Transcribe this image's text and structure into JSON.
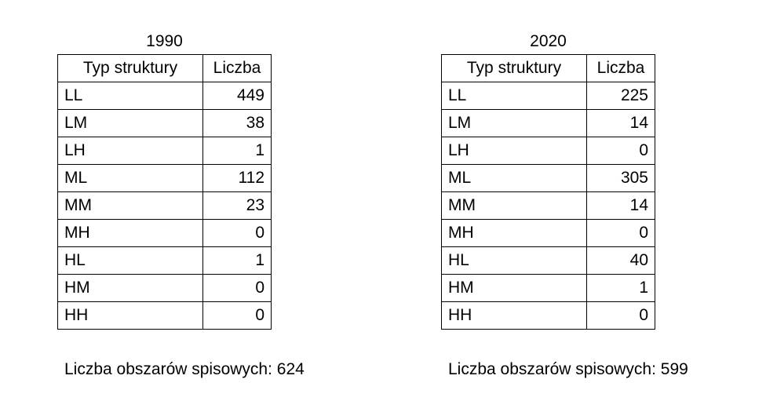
{
  "left": {
    "year": "1990",
    "headers": [
      "Typ struktury",
      "Liczba"
    ],
    "rows": [
      {
        "type": "LL",
        "count": "449"
      },
      {
        "type": "LM",
        "count": "38"
      },
      {
        "type": "LH",
        "count": "1"
      },
      {
        "type": "ML",
        "count": "112"
      },
      {
        "type": "MM",
        "count": "23"
      },
      {
        "type": "MH",
        "count": "0"
      },
      {
        "type": "HL",
        "count": "1"
      },
      {
        "type": "HM",
        "count": "0"
      },
      {
        "type": "HH",
        "count": "0"
      }
    ],
    "footer": "Liczba obszarów spisowych: 624"
  },
  "right": {
    "year": "2020",
    "headers": [
      "Typ struktury",
      "Liczba"
    ],
    "rows": [
      {
        "type": "LL",
        "count": "225"
      },
      {
        "type": "LM",
        "count": "14"
      },
      {
        "type": "LH",
        "count": "0"
      },
      {
        "type": "ML",
        "count": "305"
      },
      {
        "type": "MM",
        "count": "14"
      },
      {
        "type": "MH",
        "count": "0"
      },
      {
        "type": "HL",
        "count": "40"
      },
      {
        "type": "HM",
        "count": "1"
      },
      {
        "type": "HH",
        "count": "0"
      }
    ],
    "footer": "Liczba obszarów spisowych: 599"
  }
}
